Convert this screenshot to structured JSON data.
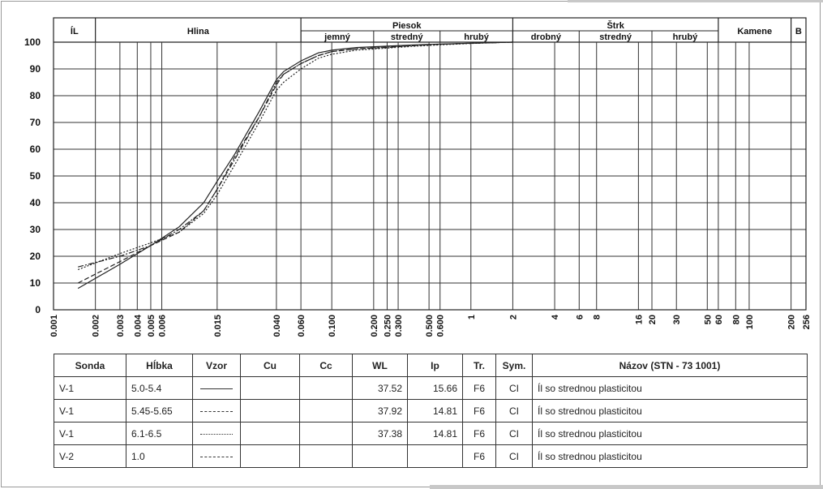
{
  "chart_data": {
    "type": "line",
    "x_scale": "log",
    "xlim": [
      0.001,
      256
    ],
    "ylim": [
      0,
      100
    ],
    "y_ticks": [
      0,
      10,
      20,
      30,
      40,
      50,
      60,
      70,
      80,
      90,
      100
    ],
    "x_tick_labels": [
      {
        "v": 0.001,
        "label": "0.001"
      },
      {
        "v": 0.002,
        "label": "0.002"
      },
      {
        "v": 0.003,
        "label": "0.003"
      },
      {
        "v": 0.004,
        "label": "0.004"
      },
      {
        "v": 0.005,
        "label": "0.005"
      },
      {
        "v": 0.006,
        "label": "0.006"
      },
      {
        "v": 0.015,
        "label": "0.015"
      },
      {
        "v": 0.04,
        "label": "0.040"
      },
      {
        "v": 0.06,
        "label": "0.060"
      },
      {
        "v": 0.1,
        "label": "0.100"
      },
      {
        "v": 0.2,
        "label": "0.200"
      },
      {
        "v": 0.25,
        "label": "0.250"
      },
      {
        "v": 0.3,
        "label": "0.300"
      },
      {
        "v": 0.5,
        "label": "0.500"
      },
      {
        "v": 0.6,
        "label": "0.600"
      },
      {
        "v": 1,
        "label": "1"
      },
      {
        "v": 2,
        "label": "2"
      },
      {
        "v": 4,
        "label": "4"
      },
      {
        "v": 6,
        "label": "6"
      },
      {
        "v": 8,
        "label": "8"
      },
      {
        "v": 16,
        "label": "16"
      },
      {
        "v": 20,
        "label": "20"
      },
      {
        "v": 30,
        "label": "30"
      },
      {
        "v": 50,
        "label": "50"
      },
      {
        "v": 60,
        "label": "60"
      },
      {
        "v": 80,
        "label": "80"
      },
      {
        "v": 100,
        "label": "100"
      },
      {
        "v": 200,
        "label": "200"
      },
      {
        "v": 256,
        "label": "256"
      }
    ],
    "x_grid": [
      0.002,
      0.003,
      0.004,
      0.005,
      0.006,
      0.015,
      0.04,
      0.06,
      0.1,
      0.2,
      0.25,
      0.3,
      0.5,
      0.6,
      1,
      2,
      4,
      6,
      8,
      16,
      20,
      30,
      50,
      60,
      80,
      100,
      200
    ],
    "y_grid": true,
    "header_top": [
      {
        "label": "ÍL",
        "from": 0.001,
        "to": 0.002
      },
      {
        "label": "Hlina",
        "from": 0.002,
        "to": 0.06
      },
      {
        "label": "Piesok",
        "from": 0.06,
        "to": 2
      },
      {
        "label": "Štrk",
        "from": 2,
        "to": 60
      },
      {
        "label": "Kamene",
        "from": 60,
        "to": 200
      },
      {
        "label": "B",
        "from": 200,
        "to": 256
      }
    ],
    "header_sub": [
      {
        "label": "jemný",
        "from": 0.06,
        "to": 0.2
      },
      {
        "label": "stredný",
        "from": 0.2,
        "to": 0.6
      },
      {
        "label": "hrubý",
        "from": 0.6,
        "to": 2
      },
      {
        "label": "drobný",
        "from": 2,
        "to": 6
      },
      {
        "label": "stredný",
        "from": 6,
        "to": 20
      },
      {
        "label": "hrubý",
        "from": 20,
        "to": 60
      }
    ],
    "series": [
      {
        "style": "solid",
        "x": [
          0.0015,
          0.003,
          0.005,
          0.008,
          0.012,
          0.015,
          0.02,
          0.03,
          0.04,
          0.045,
          0.06,
          0.08,
          0.1,
          0.15,
          0.25,
          0.4,
          0.6,
          1,
          2
        ],
        "y": [
          8,
          17,
          24,
          31,
          40,
          48,
          58,
          74,
          86,
          89,
          93,
          96,
          97,
          98,
          98.5,
          99,
          99.3,
          99.6,
          100
        ]
      },
      {
        "style": "dashed",
        "x": [
          0.0015,
          0.003,
          0.005,
          0.008,
          0.012,
          0.015,
          0.02,
          0.03,
          0.04,
          0.045,
          0.06,
          0.08,
          0.1,
          0.15,
          0.25,
          0.4,
          0.6,
          1,
          2
        ],
        "y": [
          10,
          18,
          24,
          29,
          37,
          45,
          57,
          72,
          84,
          88,
          92,
          95,
          96.5,
          97.5,
          98,
          98.8,
          99.2,
          99.6,
          100
        ]
      },
      {
        "style": "dotted",
        "x": [
          0.0015,
          0.003,
          0.005,
          0.008,
          0.012,
          0.015,
          0.02,
          0.03,
          0.04,
          0.045,
          0.06,
          0.08,
          0.1,
          0.15,
          0.25,
          0.4,
          0.6,
          1,
          2
        ],
        "y": [
          15,
          21,
          25,
          29,
          36,
          43,
          54,
          70,
          82,
          85,
          90,
          94,
          95.5,
          97,
          97.8,
          98.5,
          99,
          99.5,
          100
        ]
      },
      {
        "style": "dashdot",
        "x": [
          0.0015,
          0.003,
          0.005,
          0.008,
          0.012,
          0.015,
          0.02,
          0.03,
          0.04,
          0.045,
          0.06,
          0.08,
          0.1,
          0.15,
          0.25,
          0.4,
          0.6,
          1,
          2
        ],
        "y": [
          16,
          20,
          24,
          30,
          37,
          45,
          56,
          72,
          85,
          88,
          92,
          95,
          96.5,
          97.5,
          98.2,
          98.8,
          99.2,
          99.6,
          100
        ]
      }
    ]
  },
  "table": {
    "headers": [
      "Sonda",
      "Hĺbka",
      "Vzor",
      "Cu",
      "Cc",
      "WL",
      "Ip",
      "Tr.",
      "Sym.",
      "Názov (STN - 73 1001)"
    ],
    "rows": [
      {
        "sonda": "V-1",
        "hlbka": "5.0-5.4",
        "vzor": "solid",
        "cu": "",
        "cc": "",
        "wl": "37.52",
        "ip": "15.66",
        "tr": "F6",
        "sym": "CI",
        "nazov": "Íl so strednou plasticitou"
      },
      {
        "sonda": "V-1",
        "hlbka": "5.45-5.65",
        "vzor": "dashed",
        "cu": "",
        "cc": "",
        "wl": "37.92",
        "ip": "14.81",
        "tr": "F6",
        "sym": "CI",
        "nazov": "Íl so strednou plasticitou"
      },
      {
        "sonda": "V-1",
        "hlbka": "6.1-6.5",
        "vzor": "dotted",
        "cu": "",
        "cc": "",
        "wl": "37.38",
        "ip": "14.81",
        "tr": "F6",
        "sym": "CI",
        "nazov": "Íl so strednou plasticitou"
      },
      {
        "sonda": "V-2",
        "hlbka": "1.0",
        "vzor": "dashdot",
        "cu": "",
        "cc": "",
        "wl": "",
        "ip": "",
        "tr": "F6",
        "sym": "CI",
        "nazov": "Íl so strednou plasticitou"
      }
    ]
  }
}
